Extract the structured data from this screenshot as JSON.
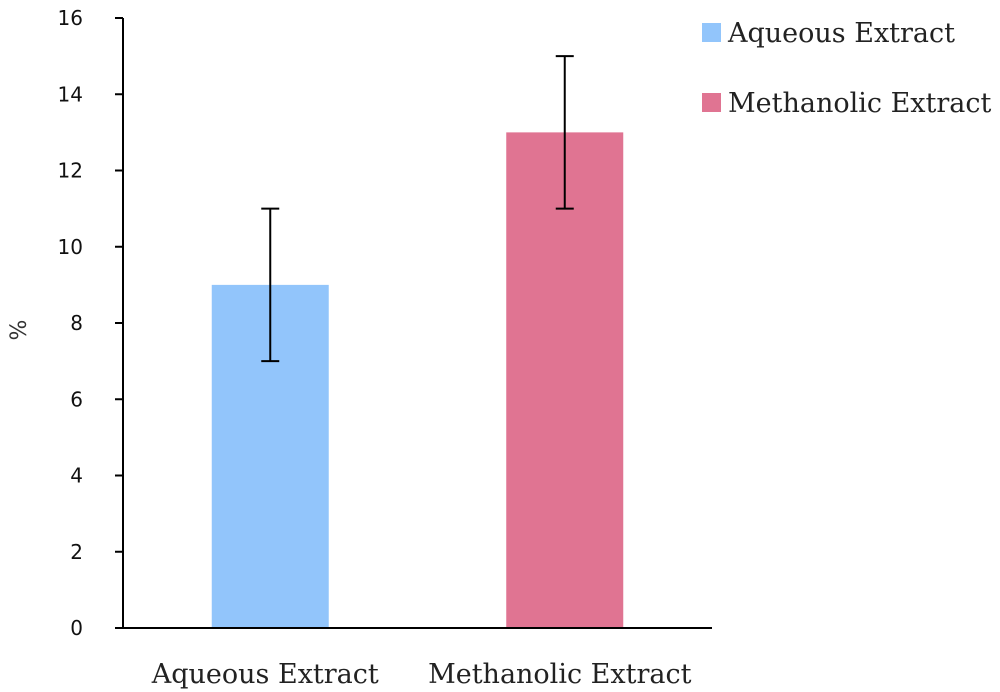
{
  "chart_data": {
    "type": "bar",
    "categories": [
      "Aqueous Extract",
      "Methanolic Extract"
    ],
    "values": [
      9,
      13
    ],
    "error": [
      2,
      2
    ],
    "colors": [
      "#92c5fb",
      "#e07492"
    ],
    "ylabel": "%",
    "ylim": [
      0,
      16
    ],
    "yticks": [
      0,
      2,
      4,
      6,
      8,
      10,
      12,
      14,
      16
    ],
    "grid": false,
    "legend": {
      "placement": "top-right",
      "entries": [
        "Aqueous Extract",
        "Methanolic Extract"
      ]
    }
  }
}
